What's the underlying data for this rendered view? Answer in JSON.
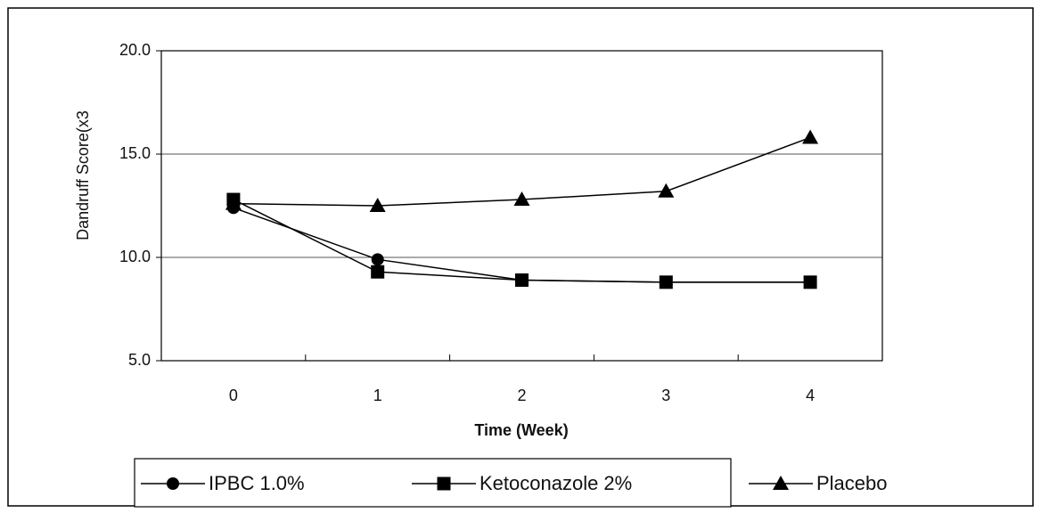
{
  "chart_data": {
    "type": "line",
    "y_label": "Dandruff Score(x3",
    "x_label": "Time (Week)",
    "categories": [
      "0",
      "1",
      "2",
      "3",
      "4"
    ],
    "series": [
      {
        "name": "IPBC 1.0%",
        "color": "#000000",
        "marker": "circle",
        "values": [
          12.4,
          9.9,
          8.9,
          8.8,
          8.8
        ]
      },
      {
        "name": "Ketoconazole 2%",
        "color": "#000000",
        "marker": "square",
        "values": [
          12.8,
          9.3,
          8.9,
          8.8,
          8.8
        ]
      },
      {
        "name": "Placebo",
        "color": "#000000",
        "marker": "triangle",
        "values": [
          12.6,
          12.5,
          12.8,
          13.2,
          15.8
        ]
      }
    ],
    "ylim": [
      5,
      20
    ],
    "yticks": [
      {
        "value": 5,
        "label": "5.0"
      },
      {
        "value": 10,
        "label": "10.0"
      },
      {
        "value": 15,
        "label": "15.0"
      },
      {
        "value": 20,
        "label": "20.0"
      }
    ],
    "grid": true,
    "legend": "bottom"
  }
}
